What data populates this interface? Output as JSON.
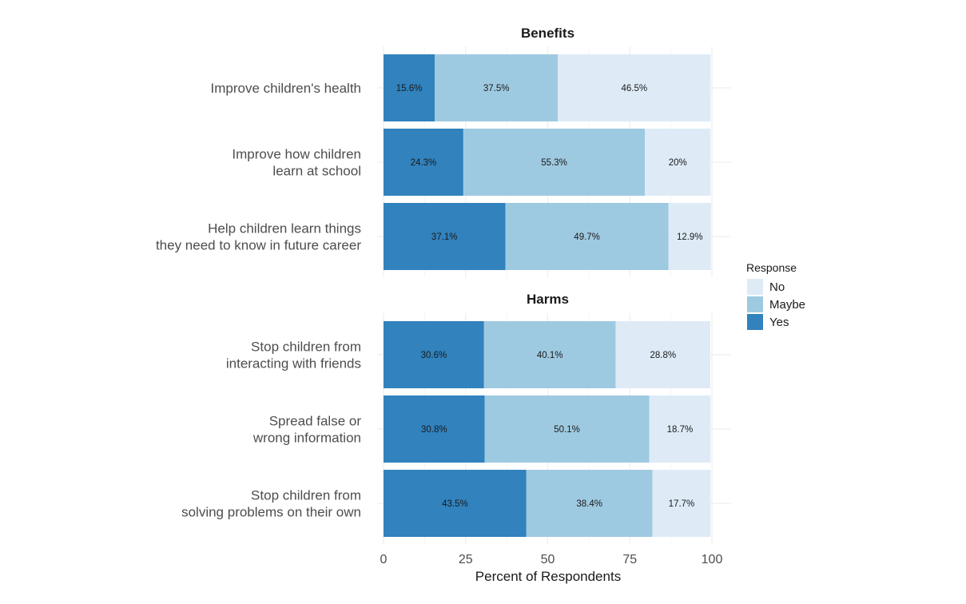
{
  "chart_data": {
    "type": "bar",
    "orientation": "horizontal",
    "stacked": true,
    "xlabel": "Percent of Respondents",
    "xlim": [
      0,
      100
    ],
    "xticks": [
      0,
      25,
      50,
      75,
      100
    ],
    "legend": {
      "title": "Response",
      "position": "right",
      "entries": [
        {
          "label": "No",
          "color": "#deebf7"
        },
        {
          "label": "Maybe",
          "color": "#9ecae1"
        },
        {
          "label": "Yes",
          "color": "#3182bd"
        }
      ]
    },
    "stack_order": [
      "Yes",
      "Maybe",
      "No"
    ],
    "panels": [
      {
        "title": "Benefits",
        "rows": [
          {
            "lines": [
              "Improve children's health"
            ],
            "values": {
              "Yes": 15.6,
              "Maybe": 37.5,
              "No": 46.5
            },
            "labels": {
              "Yes": "15.6%",
              "Maybe": "37.5%",
              "No": "46.5%"
            }
          },
          {
            "lines": [
              "Improve how children",
              "learn at school"
            ],
            "values": {
              "Yes": 24.3,
              "Maybe": 55.3,
              "No": 20
            },
            "labels": {
              "Yes": "24.3%",
              "Maybe": "55.3%",
              "No": "20%"
            }
          },
          {
            "lines": [
              "Help children learn things",
              "they need to know in future career"
            ],
            "values": {
              "Yes": 37.1,
              "Maybe": 49.7,
              "No": 12.9
            },
            "labels": {
              "Yes": "37.1%",
              "Maybe": "49.7%",
              "No": "12.9%"
            }
          }
        ]
      },
      {
        "title": "Harms",
        "rows": [
          {
            "lines": [
              "Stop children from",
              "interacting with friends"
            ],
            "values": {
              "Yes": 30.6,
              "Maybe": 40.1,
              "No": 28.8
            },
            "labels": {
              "Yes": "30.6%",
              "Maybe": "40.1%",
              "No": "28.8%"
            }
          },
          {
            "lines": [
              "Spread false or",
              "wrong information"
            ],
            "values": {
              "Yes": 30.8,
              "Maybe": 50.1,
              "No": 18.7
            },
            "labels": {
              "Yes": "30.8%",
              "Maybe": "50.1%",
              "No": "18.7%"
            }
          },
          {
            "lines": [
              "Stop children from",
              "solving problems on their own"
            ],
            "values": {
              "Yes": 43.5,
              "Maybe": 38.4,
              "No": 17.7
            },
            "labels": {
              "Yes": "43.5%",
              "Maybe": "38.4%",
              "No": "17.7%"
            }
          }
        ]
      }
    ]
  }
}
